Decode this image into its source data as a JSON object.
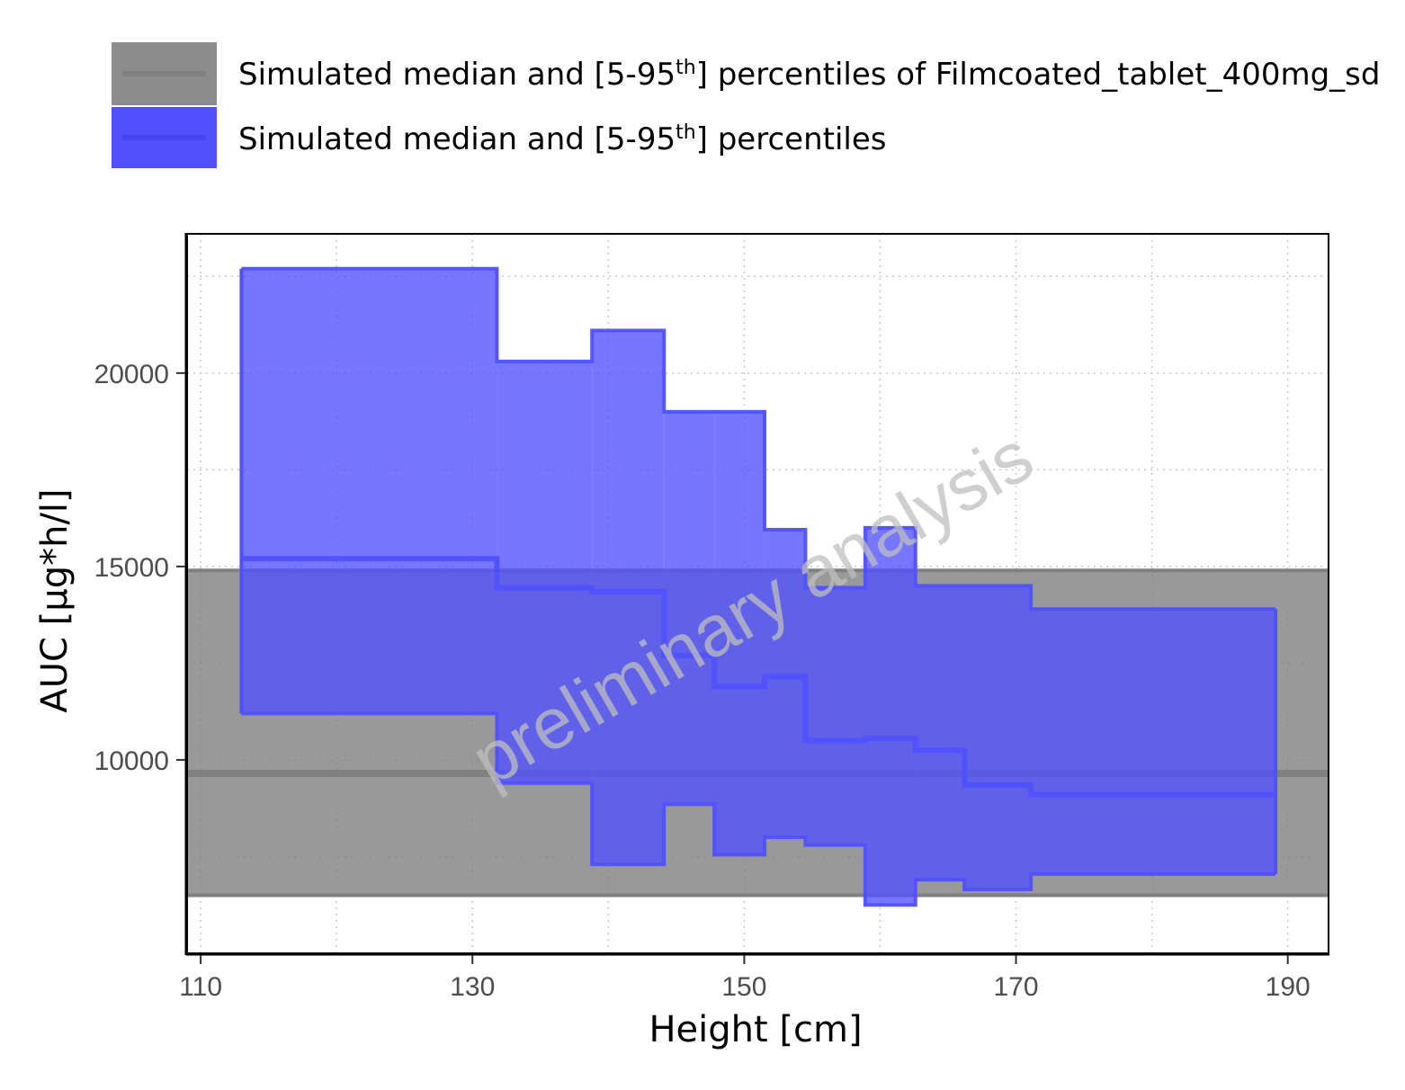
{
  "chart_data": {
    "type": "area",
    "xlabel": "Height [cm]",
    "ylabel": "AUC [µg*h/l]",
    "watermark": "preliminary analysis",
    "xlim": [
      109,
      193
    ],
    "ylim": [
      5000,
      23600
    ],
    "x_ticks": [
      110,
      130,
      150,
      170,
      190
    ],
    "y_ticks": [
      10000,
      15000,
      20000
    ],
    "grid": true,
    "legend": {
      "placement": "top",
      "entries": [
        {
          "pre": "Simulated median and [5-95",
          "sup": "th",
          "post": "] percentiles of Filmcoated_tablet_400mg_sd"
        },
        {
          "pre": "Simulated median and [5-95",
          "sup": "th",
          "post": "] percentiles"
        }
      ]
    },
    "reference": {
      "color": "#808080",
      "median": 9650,
      "lower": 6500,
      "upper": 14900
    },
    "series": {
      "color": "#5050ff",
      "bins": [
        {
          "x0": 113,
          "x1": 131.8,
          "lower": 11200,
          "median": 15200,
          "upper": 22700
        },
        {
          "x0": 131.8,
          "x1": 138.8,
          "lower": 9400,
          "median": 14450,
          "upper": 20300
        },
        {
          "x0": 138.8,
          "x1": 144.1,
          "lower": 7300,
          "median": 14350,
          "upper": 21100
        },
        {
          "x0": 144.1,
          "x1": 147.8,
          "lower": 8850,
          "median": 12700,
          "upper": 19000
        },
        {
          "x0": 147.8,
          "x1": 151.5,
          "lower": 7550,
          "median": 11900,
          "upper": 19000
        },
        {
          "x0": 151.5,
          "x1": 154.5,
          "lower": 8000,
          "median": 12150,
          "upper": 15950
        },
        {
          "x0": 154.5,
          "x1": 158.9,
          "lower": 7800,
          "median": 10500,
          "upper": 14450
        },
        {
          "x0": 158.9,
          "x1": 162.6,
          "lower": 6250,
          "median": 10550,
          "upper": 16000
        },
        {
          "x0": 162.6,
          "x1": 166.2,
          "lower": 6900,
          "median": 10250,
          "upper": 14500
        },
        {
          "x0": 166.2,
          "x1": 171.1,
          "lower": 6650,
          "median": 9350,
          "upper": 14500
        },
        {
          "x0": 171.1,
          "x1": 189.1,
          "lower": 7050,
          "median": 9100,
          "upper": 13900
        }
      ]
    }
  }
}
